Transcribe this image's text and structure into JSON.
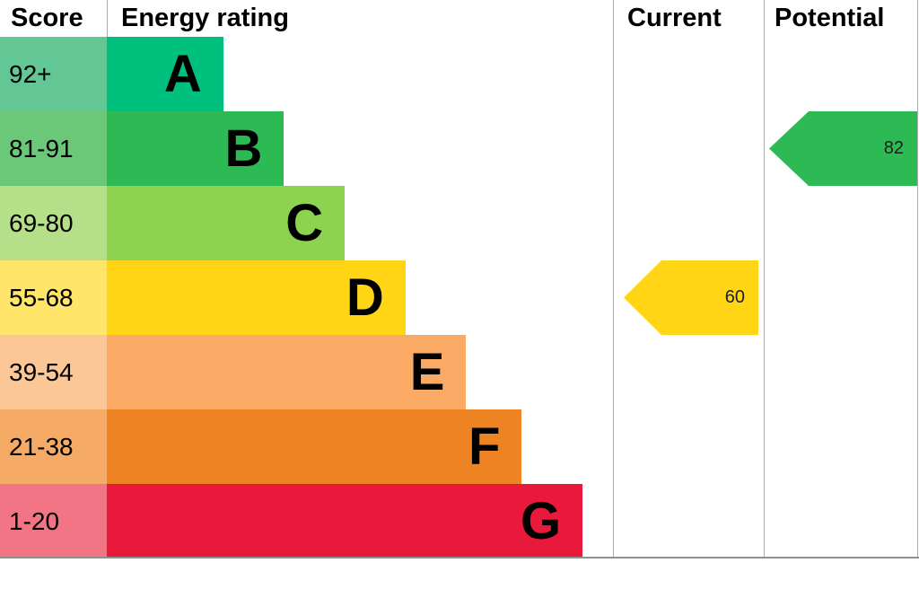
{
  "header": {
    "score": "Score",
    "energy_rating": "Energy rating",
    "current": "Current",
    "potential": "Potential"
  },
  "chart_data": {
    "type": "bar",
    "subtype": "epc-energy-rating",
    "title": "Energy rating",
    "bands": [
      {
        "letter": "A",
        "score_range": "92+",
        "bar_color": "#00c07e",
        "score_color": "#62c695",
        "width_pct": 23
      },
      {
        "letter": "B",
        "score_range": "81-91",
        "bar_color": "#2dba55",
        "score_color": "#6ac878",
        "width_pct": 35
      },
      {
        "letter": "C",
        "score_range": "69-80",
        "bar_color": "#8ed34f",
        "score_color": "#b5df88",
        "width_pct": 47
      },
      {
        "letter": "D",
        "score_range": "55-68",
        "bar_color": "#ffd516",
        "score_color": "#ffe56a",
        "width_pct": 59
      },
      {
        "letter": "E",
        "score_range": "39-54",
        "bar_color": "#fbaa65",
        "score_color": "#fcc797",
        "width_pct": 71
      },
      {
        "letter": "F",
        "score_range": "21-38",
        "bar_color": "#ee8323",
        "score_color": "#f5ab66",
        "width_pct": 82
      },
      {
        "letter": "G",
        "score_range": "1-20",
        "bar_color": "#e9193c",
        "score_color": "#f17584",
        "width_pct": 94
      }
    ],
    "current": {
      "value": 60,
      "band": "D",
      "color": "#ffd516"
    },
    "potential": {
      "value": 82,
      "band": "B",
      "color": "#2dba55"
    }
  }
}
